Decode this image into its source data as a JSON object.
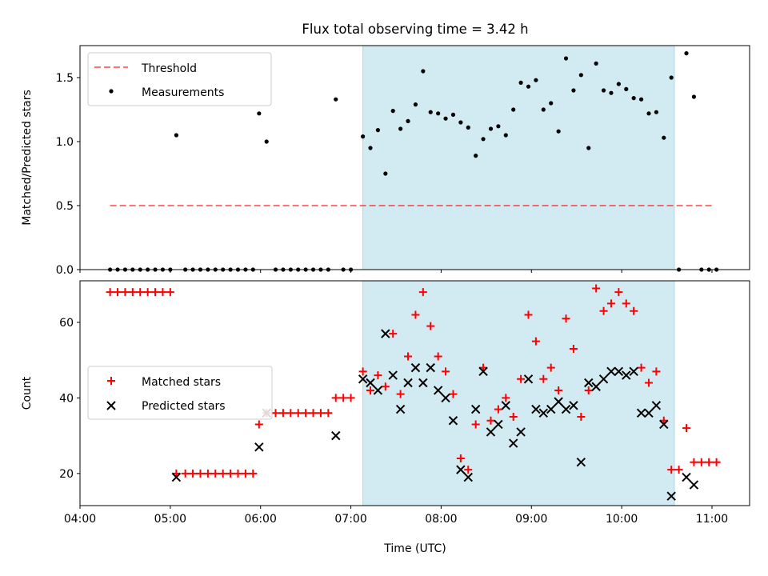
{
  "figure": {
    "title": "Flux total observing time = 3.42 h"
  },
  "colors": {
    "shade": "#add8e6",
    "threshold": "#ff0000",
    "matched": "#ff0000",
    "predicted": "#000000",
    "measurement": "#000000"
  },
  "chart_data": [
    {
      "type": "scatter",
      "name": "ratio",
      "title": "Flux total observing time = 3.42 h",
      "xlabel": "",
      "ylabel": "Matched/Predicted stars",
      "x_unit": "hours UTC",
      "xlim": [
        "04:00",
        "11:25"
      ],
      "ylim": [
        0.0,
        1.75
      ],
      "yticks": [
        "0.0",
        "0.5",
        "1.0",
        "1.5"
      ],
      "shaded_region": [
        "07:08",
        "10:35"
      ],
      "legend": {
        "position": "top-left",
        "entries": [
          "Threshold",
          "Measurements"
        ]
      },
      "threshold": {
        "name": "Threshold",
        "y": 0.5,
        "x_range": [
          "04:20",
          "11:00"
        ]
      },
      "series": [
        {
          "name": "Measurements",
          "marker": "dot",
          "points": [
            [
              "04:20",
              0.0
            ],
            [
              "04:25",
              0.0
            ],
            [
              "04:30",
              0.0
            ],
            [
              "04:35",
              0.0
            ],
            [
              "04:40",
              0.0
            ],
            [
              "04:45",
              0.0
            ],
            [
              "04:50",
              0.0
            ],
            [
              "04:55",
              0.0
            ],
            [
              "05:00",
              0.0
            ],
            [
              "05:04",
              1.05
            ],
            [
              "05:10",
              0.0
            ],
            [
              "05:15",
              0.0
            ],
            [
              "05:20",
              0.0
            ],
            [
              "05:25",
              0.0
            ],
            [
              "05:30",
              0.0
            ],
            [
              "05:35",
              0.0
            ],
            [
              "05:40",
              0.0
            ],
            [
              "05:45",
              0.0
            ],
            [
              "05:50",
              0.0
            ],
            [
              "05:55",
              0.0
            ],
            [
              "05:59",
              1.22
            ],
            [
              "06:04",
              1.0
            ],
            [
              "06:10",
              0.0
            ],
            [
              "06:15",
              0.0
            ],
            [
              "06:20",
              0.0
            ],
            [
              "06:25",
              0.0
            ],
            [
              "06:30",
              0.0
            ],
            [
              "06:35",
              0.0
            ],
            [
              "06:40",
              0.0
            ],
            [
              "06:45",
              0.0
            ],
            [
              "06:50",
              1.33
            ],
            [
              "06:55",
              0.0
            ],
            [
              "07:00",
              0.0
            ],
            [
              "07:08",
              1.04
            ],
            [
              "07:13",
              0.95
            ],
            [
              "07:18",
              1.09
            ],
            [
              "07:23",
              0.75
            ],
            [
              "07:28",
              1.24
            ],
            [
              "07:33",
              1.1
            ],
            [
              "07:38",
              1.16
            ],
            [
              "07:43",
              1.29
            ],
            [
              "07:48",
              1.55
            ],
            [
              "07:53",
              1.23
            ],
            [
              "07:58",
              1.22
            ],
            [
              "08:03",
              1.18
            ],
            [
              "08:08",
              1.21
            ],
            [
              "08:13",
              1.15
            ],
            [
              "08:18",
              1.11
            ],
            [
              "08:23",
              0.89
            ],
            [
              "08:28",
              1.02
            ],
            [
              "08:33",
              1.1
            ],
            [
              "08:38",
              1.12
            ],
            [
              "08:43",
              1.05
            ],
            [
              "08:48",
              1.25
            ],
            [
              "08:53",
              1.46
            ],
            [
              "08:58",
              1.43
            ],
            [
              "09:03",
              1.48
            ],
            [
              "09:08",
              1.25
            ],
            [
              "09:13",
              1.3
            ],
            [
              "09:18",
              1.08
            ],
            [
              "09:23",
              1.65
            ],
            [
              "09:28",
              1.4
            ],
            [
              "09:33",
              1.52
            ],
            [
              "09:38",
              0.95
            ],
            [
              "09:43",
              1.61
            ],
            [
              "09:48",
              1.4
            ],
            [
              "09:53",
              1.38
            ],
            [
              "09:58",
              1.45
            ],
            [
              "10:03",
              1.41
            ],
            [
              "10:08",
              1.34
            ],
            [
              "10:13",
              1.33
            ],
            [
              "10:18",
              1.22
            ],
            [
              "10:23",
              1.23
            ],
            [
              "10:28",
              1.03
            ],
            [
              "10:33",
              1.5
            ],
            [
              "10:38",
              0.0
            ],
            [
              "10:43",
              1.69
            ],
            [
              "10:48",
              1.35
            ],
            [
              "10:53",
              0.0
            ],
            [
              "10:58",
              0.0
            ],
            [
              "11:03",
              0.0
            ]
          ]
        }
      ]
    },
    {
      "type": "scatter",
      "name": "counts",
      "title": "",
      "xlabel": "Time (UTC)",
      "ylabel": "Count",
      "x_unit": "hours UTC",
      "xlim": [
        "04:00",
        "11:25"
      ],
      "ylim": [
        11.5,
        71.0
      ],
      "yticks": [
        "20",
        "40",
        "60"
      ],
      "xticks": [
        "04:00",
        "05:00",
        "06:00",
        "07:00",
        "08:00",
        "09:00",
        "10:00",
        "11:00"
      ],
      "shaded_region": [
        "07:08",
        "10:35"
      ],
      "legend": {
        "position": "center-left",
        "entries": [
          "Matched stars",
          "Predicted stars"
        ]
      },
      "series": [
        {
          "name": "Matched stars",
          "marker": "plus",
          "points": [
            [
              "04:20",
              68
            ],
            [
              "04:25",
              68
            ],
            [
              "04:30",
              68
            ],
            [
              "04:35",
              68
            ],
            [
              "04:40",
              68
            ],
            [
              "04:45",
              68
            ],
            [
              "04:50",
              68
            ],
            [
              "04:55",
              68
            ],
            [
              "05:00",
              68
            ],
            [
              "05:04",
              20
            ],
            [
              "05:10",
              20
            ],
            [
              "05:15",
              20
            ],
            [
              "05:20",
              20
            ],
            [
              "05:25",
              20
            ],
            [
              "05:30",
              20
            ],
            [
              "05:35",
              20
            ],
            [
              "05:40",
              20
            ],
            [
              "05:45",
              20
            ],
            [
              "05:50",
              20
            ],
            [
              "05:55",
              20
            ],
            [
              "05:59",
              33
            ],
            [
              "06:04",
              36
            ],
            [
              "06:10",
              36
            ],
            [
              "06:15",
              36
            ],
            [
              "06:20",
              36
            ],
            [
              "06:25",
              36
            ],
            [
              "06:30",
              36
            ],
            [
              "06:35",
              36
            ],
            [
              "06:40",
              36
            ],
            [
              "06:45",
              36
            ],
            [
              "06:50",
              40
            ],
            [
              "06:55",
              40
            ],
            [
              "07:00",
              40
            ],
            [
              "07:08",
              47
            ],
            [
              "07:13",
              42
            ],
            [
              "07:18",
              46
            ],
            [
              "07:23",
              43
            ],
            [
              "07:28",
              57
            ],
            [
              "07:33",
              41
            ],
            [
              "07:38",
              51
            ],
            [
              "07:43",
              62
            ],
            [
              "07:48",
              68
            ],
            [
              "07:53",
              59
            ],
            [
              "07:58",
              51
            ],
            [
              "08:03",
              47
            ],
            [
              "08:08",
              41
            ],
            [
              "08:13",
              24
            ],
            [
              "08:18",
              21
            ],
            [
              "08:23",
              33
            ],
            [
              "08:28",
              48
            ],
            [
              "08:33",
              34
            ],
            [
              "08:38",
              37
            ],
            [
              "08:43",
              40
            ],
            [
              "08:48",
              35
            ],
            [
              "08:53",
              45
            ],
            [
              "08:58",
              62
            ],
            [
              "09:03",
              55
            ],
            [
              "09:08",
              45
            ],
            [
              "09:13",
              48
            ],
            [
              "09:18",
              42
            ],
            [
              "09:23",
              61
            ],
            [
              "09:28",
              53
            ],
            [
              "09:33",
              35
            ],
            [
              "09:38",
              42
            ],
            [
              "09:43",
              69
            ],
            [
              "09:48",
              63
            ],
            [
              "09:53",
              65
            ],
            [
              "09:58",
              68
            ],
            [
              "10:03",
              65
            ],
            [
              "10:08",
              63
            ],
            [
              "10:13",
              48
            ],
            [
              "10:18",
              44
            ],
            [
              "10:23",
              47
            ],
            [
              "10:28",
              34
            ],
            [
              "10:33",
              21
            ],
            [
              "10:38",
              21
            ],
            [
              "10:43",
              32
            ],
            [
              "10:48",
              23
            ],
            [
              "10:53",
              23
            ],
            [
              "10:58",
              23
            ],
            [
              "11:03",
              23
            ]
          ]
        },
        {
          "name": "Predicted stars",
          "marker": "cross",
          "points": [
            [
              "05:04",
              19
            ],
            [
              "05:59",
              27
            ],
            [
              "06:04",
              36
            ],
            [
              "06:50",
              30
            ],
            [
              "07:08",
              45
            ],
            [
              "07:13",
              44
            ],
            [
              "07:18",
              42
            ],
            [
              "07:23",
              57
            ],
            [
              "07:28",
              46
            ],
            [
              "07:33",
              37
            ],
            [
              "07:38",
              44
            ],
            [
              "07:43",
              48
            ],
            [
              "07:48",
              44
            ],
            [
              "07:53",
              48
            ],
            [
              "07:58",
              42
            ],
            [
              "08:03",
              40
            ],
            [
              "08:08",
              34
            ],
            [
              "08:13",
              21
            ],
            [
              "08:18",
              19
            ],
            [
              "08:23",
              37
            ],
            [
              "08:28",
              47
            ],
            [
              "08:33",
              31
            ],
            [
              "08:38",
              33
            ],
            [
              "08:43",
              38
            ],
            [
              "08:48",
              28
            ],
            [
              "08:53",
              31
            ],
            [
              "08:58",
              45
            ],
            [
              "09:03",
              37
            ],
            [
              "09:08",
              36
            ],
            [
              "09:13",
              37
            ],
            [
              "09:18",
              39
            ],
            [
              "09:23",
              37
            ],
            [
              "09:28",
              38
            ],
            [
              "09:33",
              23
            ],
            [
              "09:38",
              44
            ],
            [
              "09:43",
              43
            ],
            [
              "09:48",
              45
            ],
            [
              "09:53",
              47
            ],
            [
              "09:58",
              47
            ],
            [
              "10:03",
              46
            ],
            [
              "10:08",
              47
            ],
            [
              "10:13",
              36
            ],
            [
              "10:18",
              36
            ],
            [
              "10:23",
              38
            ],
            [
              "10:28",
              33
            ],
            [
              "10:33",
              14
            ],
            [
              "10:43",
              19
            ],
            [
              "10:48",
              17
            ]
          ]
        }
      ]
    }
  ]
}
